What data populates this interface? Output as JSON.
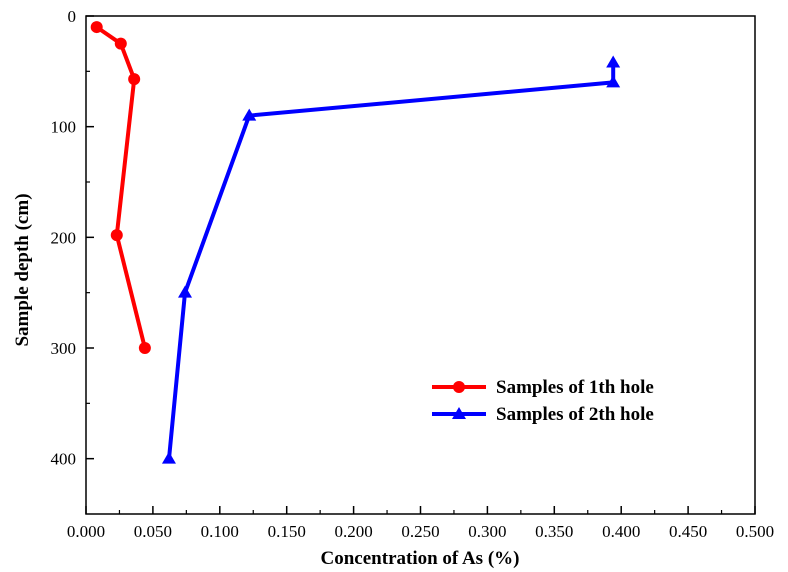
{
  "chart_data": {
    "type": "line",
    "title": "",
    "xlabel": "Concentration of As  (%)",
    "ylabel": "Sample depth  (cm)",
    "xlim": [
      0.0,
      0.5
    ],
    "ylim": [
      0,
      450
    ],
    "y_inverted": true,
    "x_ticks": [
      "0.000",
      "0.050",
      "0.100",
      "0.150",
      "0.200",
      "0.250",
      "0.300",
      "0.350",
      "0.400",
      "0.450",
      "0.500"
    ],
    "y_ticks": [
      "0",
      "100",
      "200",
      "300",
      "400"
    ],
    "grid": false,
    "legend_position": "lower-right",
    "series": [
      {
        "name": "Samples of 1th hole",
        "color": "#ff0000",
        "marker": "circle",
        "x": [
          0.008,
          0.026,
          0.036,
          0.023,
          0.044
        ],
        "y": [
          10,
          25,
          57,
          198,
          300
        ]
      },
      {
        "name": "Samples of 2th hole",
        "color": "#0000ff",
        "marker": "triangle",
        "x": [
          0.394,
          0.394,
          0.122,
          0.074,
          0.062
        ],
        "y": [
          42,
          60,
          90,
          250,
          400
        ]
      }
    ]
  }
}
